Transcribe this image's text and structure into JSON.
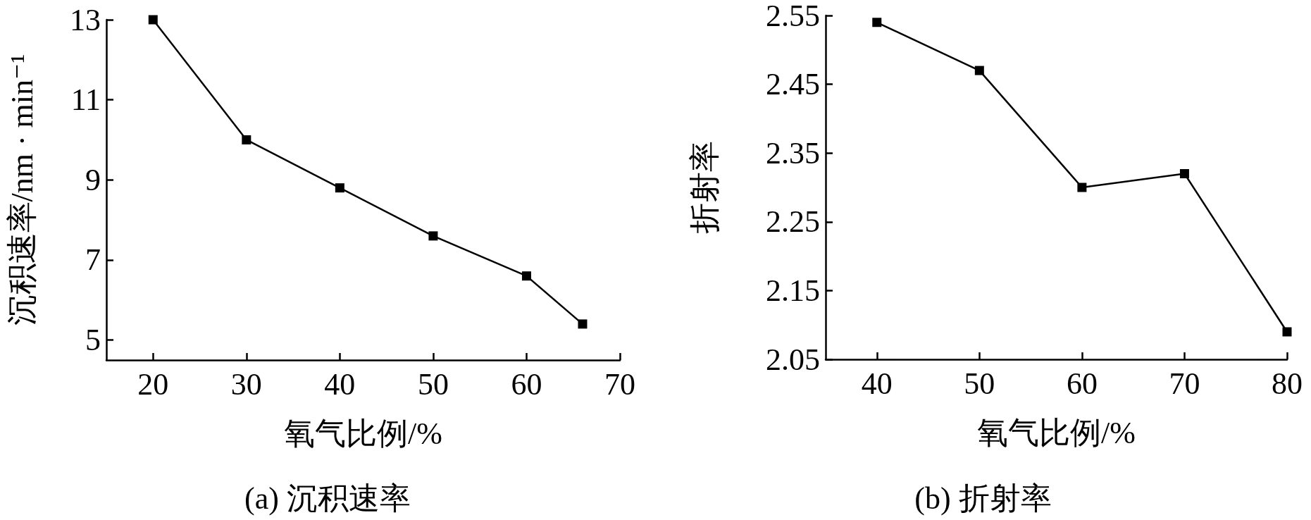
{
  "chart_data": [
    {
      "type": "line",
      "title": "(a) 沉积速率",
      "xlabel": "氧气比例/%",
      "ylabel": "沉积速率/nm · min⁻¹",
      "x": [
        20,
        30,
        40,
        50,
        60,
        66
      ],
      "series": [
        {
          "color": "#000000",
          "values": [
            13,
            10,
            8.8,
            7.6,
            6.6,
            5.4
          ]
        }
      ],
      "xlim": [
        15,
        70
      ],
      "xticks": [
        20,
        30,
        40,
        50,
        60,
        70
      ],
      "ylim": [
        4.5,
        13
      ],
      "yticks": [
        5,
        7,
        9,
        11,
        13
      ],
      "marker": "square",
      "line_style": "solid",
      "grid": false
    },
    {
      "type": "line",
      "title": "(b) 折射率",
      "xlabel": "氧气比例/%",
      "ylabel": "折射率",
      "x": [
        40,
        50,
        60,
        70,
        80
      ],
      "series": [
        {
          "color": "#000000",
          "values": [
            2.54,
            2.47,
            2.3,
            2.32,
            2.09
          ]
        }
      ],
      "xlim": [
        35,
        80
      ],
      "xticks": [
        40,
        50,
        60,
        70,
        80
      ],
      "ylim": [
        2.05,
        2.55
      ],
      "yticks": [
        {
          "value": 2.55,
          "label": "2.55"
        },
        {
          "value": 2.45,
          "label": "2.45"
        },
        {
          "value": 2.35,
          "label": "2.35"
        },
        {
          "value": 2.25,
          "label": "2.25"
        },
        {
          "value": 2.15,
          "label": "2.15"
        },
        {
          "value": 2.05,
          "label": "2.05"
        }
      ],
      "marker": "square",
      "line_style": "solid",
      "grid": false
    }
  ]
}
